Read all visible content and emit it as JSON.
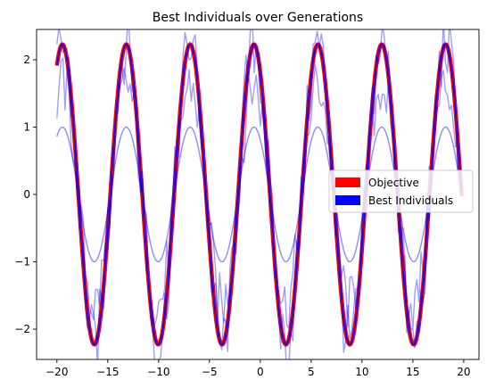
{
  "chart_data": {
    "type": "line",
    "title": "Best Individuals over Generations",
    "xlabel": "",
    "ylabel": "",
    "xlim": [
      -22.0,
      21.5
    ],
    "ylim": [
      -2.45,
      2.45
    ],
    "xticks": [
      -20,
      -15,
      -10,
      -5,
      0,
      5,
      10,
      15,
      20
    ],
    "yticks": [
      -2,
      -1,
      0,
      1,
      2
    ],
    "grid": false,
    "legend_position": "right",
    "legend": [
      {
        "label": "Objective",
        "color": "#ff0000"
      },
      {
        "label": "Best Individuals",
        "color": "#0000ff"
      }
    ],
    "objective": {
      "name": "Objective",
      "color": "#ff0000",
      "amplitude": 2.23,
      "period": 6.28,
      "phase": -4.09,
      "x_start": -20,
      "x_end": 19.8
    },
    "best_individuals": [
      {
        "amplitude": 1.0,
        "period": 6.28,
        "phase": -4.09,
        "noise": 0,
        "opacity": 0.45
      },
      {
        "amplitude": 1.64,
        "period": 6.28,
        "phase": -4.09,
        "noise": 0.45,
        "opacity": 0.38
      },
      {
        "amplitude": 2.23,
        "period": 6.28,
        "phase": -4.09,
        "noise": 0.55,
        "opacity": 0.38
      },
      {
        "amplitude": 2.23,
        "period": 6.28,
        "phase": -4.09,
        "noise": 0,
        "opacity": 0.9
      }
    ]
  },
  "colors": {
    "objective": "#ff0000",
    "best": "#0000ff",
    "axes": "#000000"
  }
}
